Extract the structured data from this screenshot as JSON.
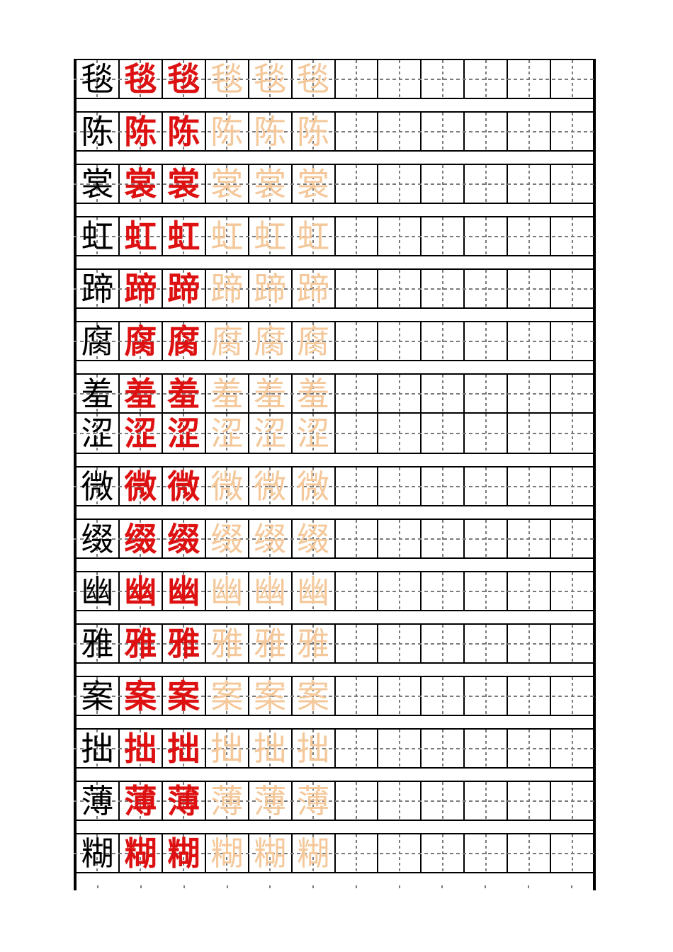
{
  "sheet": {
    "columns_per_row": 12,
    "cell_pattern": {
      "model_black_cells": 1,
      "example_red_cells": 2,
      "trace_faded_cells": 3,
      "empty_cells": 6
    },
    "colors": {
      "model_character": "#000000",
      "example_character": "#dd1111",
      "trace_character": "#f4c89a",
      "grid_border": "#000000",
      "center_guide": "#7a7a7a",
      "paper": "#ffffff"
    },
    "rows": [
      {
        "char": "毯"
      },
      {
        "char": "陈"
      },
      {
        "char": "裳"
      },
      {
        "char": "虹"
      },
      {
        "char": "蹄"
      },
      {
        "char": "腐"
      },
      {
        "char": "羞"
      },
      {
        "char": "涩"
      },
      {
        "char": "微"
      },
      {
        "char": "缀"
      },
      {
        "char": "幽"
      },
      {
        "char": "雅"
      },
      {
        "char": "案"
      },
      {
        "char": "拙"
      },
      {
        "char": "薄"
      },
      {
        "char": "糊"
      }
    ]
  }
}
